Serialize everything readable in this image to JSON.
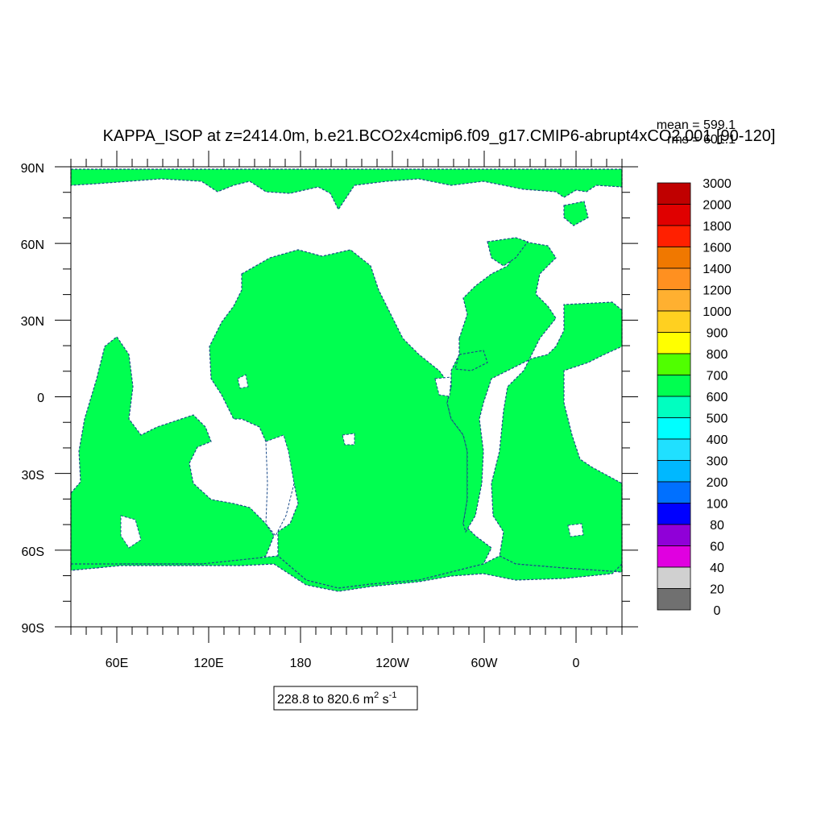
{
  "title": "KAPPA_ISOP at z=2414.0m, b.e21.BCO2x4cmip6.f09_g17.CMIP6-abrupt4xCO2.001 [90-120]",
  "stats": {
    "mean": "mean = 599.1",
    "rms": "rms = 601.1"
  },
  "lat_ticks": [
    "90N",
    "60N",
    "30N",
    "0",
    "30S",
    "60S",
    "90S"
  ],
  "lon_ticks": [
    "60E",
    "120E",
    "180",
    "120W",
    "60W",
    "0"
  ],
  "range_label": {
    "text": "228.8 to 820.6 m",
    "sup1": "2",
    "mid": " s",
    "sup2": "-1"
  },
  "colorbar": {
    "labels": [
      "3000",
      "2000",
      "1800",
      "1600",
      "1400",
      "1200",
      "1000",
      "900",
      "800",
      "700",
      "600",
      "500",
      "400",
      "300",
      "200",
      "100",
      "80",
      "60",
      "40",
      "20",
      "0"
    ],
    "colors": [
      "#c00000",
      "#e00000",
      "#ff2000",
      "#f07800",
      "#ff9020",
      "#ffb030",
      "#ffd020",
      "#ffff00",
      "#50ff00",
      "#00ff50",
      "#00ffc0",
      "#00ffff",
      "#20e0ff",
      "#00b8ff",
      "#0070ff",
      "#0000ff",
      "#9000d8",
      "#e000e0",
      "#d0d0d0",
      "#707070"
    ]
  },
  "colors": {
    "ocean": "#00ff50",
    "land": "#ffffff",
    "coast": "#1a4a8a"
  },
  "chart_data": {
    "type": "heatmap",
    "variable": "KAPPA_ISOP",
    "units": "m2 s-1",
    "depth": "z=2414.0m",
    "case": "b.e21.BCO2x4cmip6.f09_g17.CMIP6-abrupt4xCO2.001",
    "years": "[90-120]",
    "mean": 599.1,
    "rms": 601.1,
    "min": 228.8,
    "max": 820.6,
    "dominant_value_band": [
      600,
      700
    ],
    "lat_range": [
      -90,
      90
    ],
    "lon_range": [
      30,
      390
    ],
    "contour_levels": [
      0,
      20,
      40,
      60,
      80,
      100,
      200,
      300,
      400,
      500,
      600,
      700,
      800,
      900,
      1000,
      1200,
      1400,
      1600,
      1800,
      2000,
      3000
    ]
  }
}
